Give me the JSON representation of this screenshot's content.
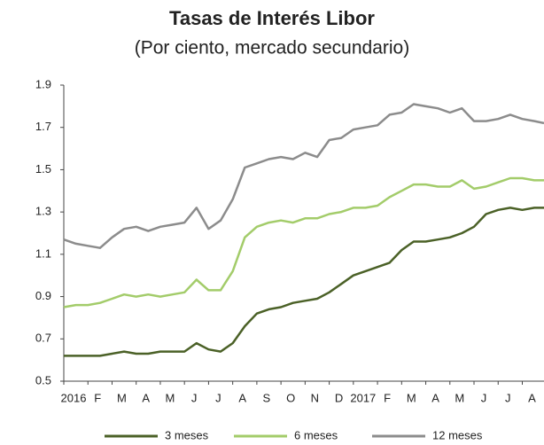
{
  "chart_data": {
    "type": "line",
    "title": "Tasas de Interés Libor",
    "subtitle": "(Por ciento, mercado secundario)",
    "x": [
      0,
      0.5,
      1,
      1.5,
      2,
      2.5,
      3,
      3.5,
      4,
      4.5,
      5,
      5.5,
      6,
      6.5,
      7,
      7.5,
      8,
      8.5,
      9,
      9.5,
      10,
      10.5,
      11,
      11.5,
      12,
      12.5,
      13,
      13.5,
      14,
      14.5,
      15,
      15.5,
      16,
      16.5,
      17,
      17.5,
      18,
      18.5,
      19,
      19.5,
      19.9
    ],
    "xlim": [
      0,
      19.9
    ],
    "xticks": [
      {
        "value": 0,
        "label": "2016"
      },
      {
        "value": 1,
        "label": "F"
      },
      {
        "value": 2,
        "label": "M"
      },
      {
        "value": 3,
        "label": "A"
      },
      {
        "value": 4,
        "label": "M"
      },
      {
        "value": 5,
        "label": "J"
      },
      {
        "value": 6,
        "label": "J"
      },
      {
        "value": 7,
        "label": "A"
      },
      {
        "value": 8,
        "label": "S"
      },
      {
        "value": 9,
        "label": "O"
      },
      {
        "value": 10,
        "label": "N"
      },
      {
        "value": 11,
        "label": "D"
      },
      {
        "value": 12,
        "label": "2017"
      },
      {
        "value": 13,
        "label": "F"
      },
      {
        "value": 14,
        "label": "M"
      },
      {
        "value": 15,
        "label": "A"
      },
      {
        "value": 16,
        "label": "M"
      },
      {
        "value": 17,
        "label": "J"
      },
      {
        "value": 18,
        "label": "J"
      },
      {
        "value": 19,
        "label": "A"
      }
    ],
    "ylim": [
      0.5,
      1.9
    ],
    "yticks": [
      0.5,
      0.7,
      0.9,
      1.1,
      1.3,
      1.5,
      1.7,
      1.9
    ],
    "grid": false,
    "series": [
      {
        "name": "3 meses",
        "color": "#4b6127",
        "values": [
          0.62,
          0.62,
          0.62,
          0.62,
          0.63,
          0.64,
          0.63,
          0.63,
          0.64,
          0.64,
          0.64,
          0.68,
          0.65,
          0.64,
          0.68,
          0.76,
          0.82,
          0.84,
          0.85,
          0.87,
          0.88,
          0.89,
          0.92,
          0.96,
          1.0,
          1.02,
          1.04,
          1.06,
          1.12,
          1.16,
          1.16,
          1.17,
          1.18,
          1.2,
          1.23,
          1.29,
          1.31,
          1.32,
          1.31,
          1.32,
          1.32
        ]
      },
      {
        "name": "6 meses",
        "color": "#a3cc6a",
        "values": [
          0.85,
          0.86,
          0.86,
          0.87,
          0.89,
          0.91,
          0.9,
          0.91,
          0.9,
          0.91,
          0.92,
          0.98,
          0.93,
          0.93,
          1.02,
          1.18,
          1.23,
          1.25,
          1.26,
          1.25,
          1.27,
          1.27,
          1.29,
          1.3,
          1.32,
          1.32,
          1.33,
          1.37,
          1.4,
          1.43,
          1.43,
          1.42,
          1.42,
          1.45,
          1.41,
          1.42,
          1.44,
          1.46,
          1.46,
          1.45,
          1.45
        ]
      },
      {
        "name": "12 meses",
        "color": "#8c8c8c",
        "values": [
          1.17,
          1.15,
          1.14,
          1.13,
          1.18,
          1.22,
          1.23,
          1.21,
          1.23,
          1.24,
          1.25,
          1.32,
          1.22,
          1.26,
          1.36,
          1.51,
          1.53,
          1.55,
          1.56,
          1.55,
          1.58,
          1.56,
          1.64,
          1.65,
          1.69,
          1.7,
          1.71,
          1.76,
          1.77,
          1.81,
          1.8,
          1.79,
          1.77,
          1.79,
          1.73,
          1.73,
          1.74,
          1.76,
          1.74,
          1.73,
          1.72
        ]
      }
    ]
  }
}
